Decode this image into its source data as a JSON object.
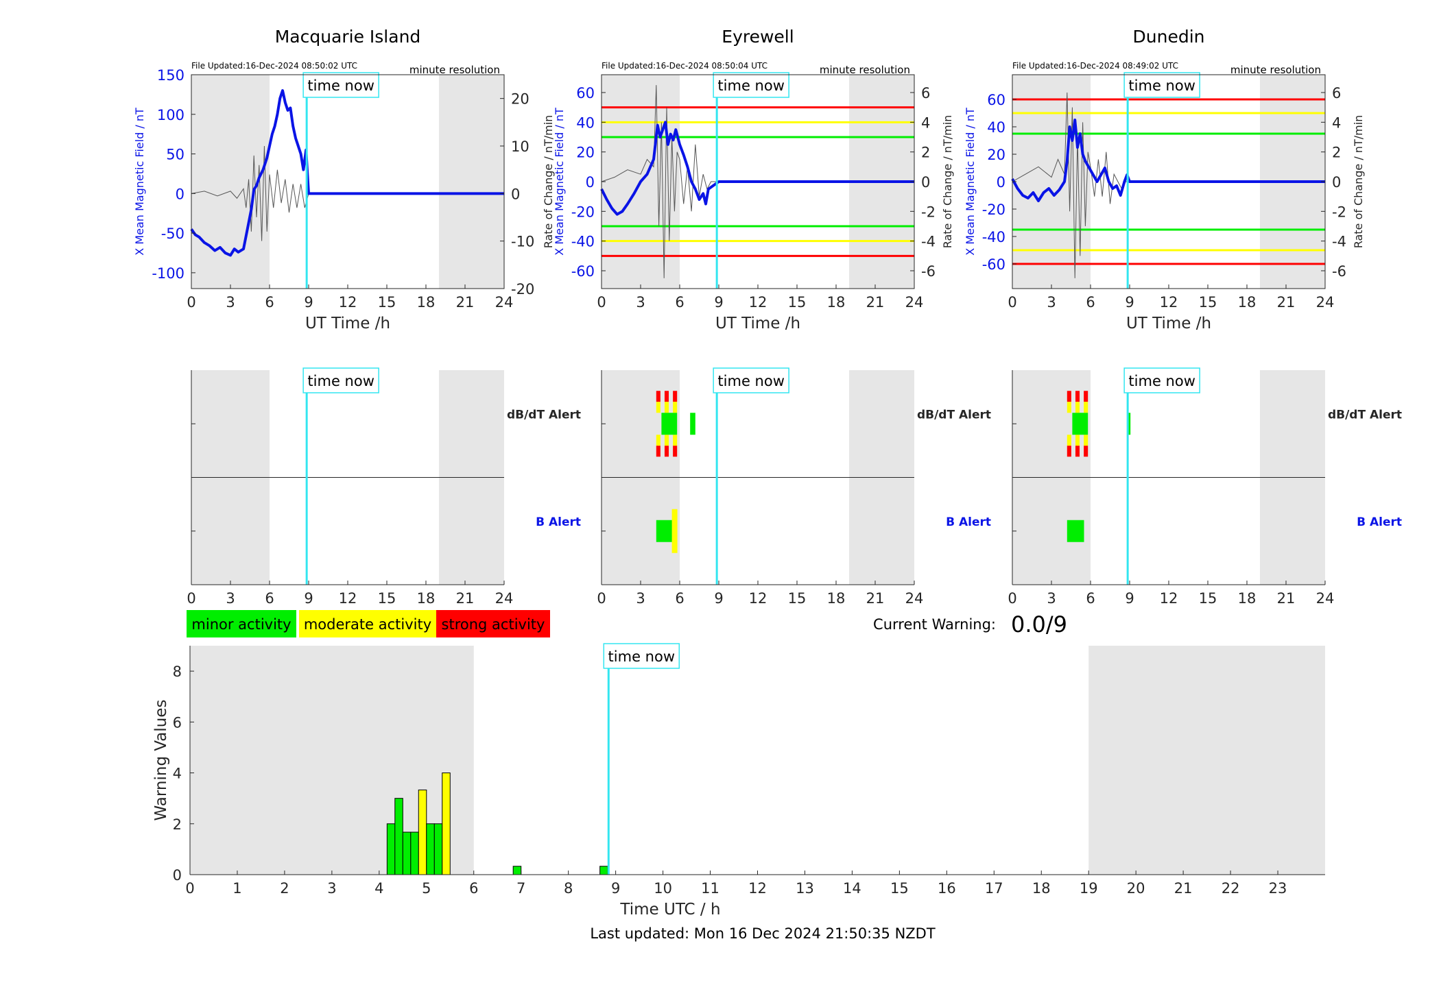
{
  "footer": {
    "last_updated": "Last updated: Mon 16 Dec 2024 21:50:35 NZDT"
  },
  "common": {
    "time_now_label": "time now",
    "time_now_hour": 8.85,
    "night_shading": [
      [
        0,
        6
      ],
      [
        19,
        24
      ]
    ],
    "xlabel": "UT Time /h",
    "file_resolution": "minute resolution",
    "alert_row_db": "dB/dT Alert",
    "alert_row_b": "B Alert"
  },
  "legend": {
    "minor": "minor activity",
    "moderate": "moderate activity",
    "strong": "strong activity"
  },
  "current_warning": {
    "label": "Current Warning:",
    "value": "0.0/9"
  },
  "colors": {
    "field": "#0a14e6",
    "rate": "#555555",
    "time_now": "#33e6f0",
    "night": "#e6e6e6",
    "minor": "#00ee00",
    "moderate": "#ffff00",
    "strong": "#ff0000"
  },
  "chart_data": [
    {
      "type": "line",
      "title": "Macquarie Island",
      "file_updated": "File Updated:16-Dec-2024 08:50:02 UTC",
      "ylabel": "X Mean Magnetic Field / nT",
      "y2label": "Rate of Change / nT/min",
      "xlim": [
        0,
        24
      ],
      "ylim": [
        -120,
        150
      ],
      "y2lim": [
        -20,
        25
      ],
      "yticks": [
        -100,
        -50,
        0,
        50,
        100,
        150
      ],
      "y2ticks": [
        -20,
        -10,
        0,
        10,
        20
      ],
      "thresholds": [],
      "series": [
        {
          "values_role": "field",
          "x": [
            0,
            0.3,
            0.6,
            1.0,
            1.4,
            1.8,
            2.2,
            2.6,
            3.0,
            3.3,
            3.6,
            4.0,
            4.3,
            4.6,
            4.8,
            5.0,
            5.2,
            5.5,
            5.8,
            6.0,
            6.2,
            6.4,
            6.6,
            6.8,
            7.0,
            7.2,
            7.4,
            7.6,
            7.8,
            8.0,
            8.2,
            8.4,
            8.6,
            8.8,
            9.0,
            24
          ],
          "y": [
            -45,
            -52,
            -55,
            -62,
            -66,
            -72,
            -68,
            -75,
            -78,
            -70,
            -74,
            -70,
            -45,
            -20,
            5,
            10,
            20,
            30,
            45,
            60,
            75,
            85,
            100,
            120,
            130,
            115,
            105,
            108,
            85,
            70,
            60,
            50,
            30,
            55,
            0,
            0
          ]
        },
        {
          "values_role": "rate",
          "x": [
            0,
            1,
            2,
            3,
            3.5,
            4,
            4.2,
            4.4,
            4.6,
            4.8,
            5.0,
            5.2,
            5.4,
            5.6,
            5.8,
            6.0,
            6.3,
            6.6,
            6.9,
            7.2,
            7.5,
            7.8,
            8.1,
            8.4,
            8.7,
            9.0
          ],
          "y": [
            0,
            0.5,
            -0.5,
            0.5,
            -1,
            1,
            -3,
            3,
            -8,
            8,
            -5,
            6,
            -10,
            10,
            -8,
            4,
            -3,
            5,
            -2,
            3,
            -4,
            2,
            -3,
            2,
            -3,
            0
          ]
        }
      ],
      "alerts": {
        "db": [],
        "b": []
      }
    },
    {
      "type": "line",
      "title": "Eyrewell",
      "file_updated": "File Updated:16-Dec-2024 08:50:04 UTC",
      "ylabel": "X Mean Magnetic Field / nT",
      "y2label": "Rate of Change / nT/min",
      "xlim": [
        0,
        24
      ],
      "ylim": [
        -72,
        72
      ],
      "y2lim": [
        -7.2,
        7.2
      ],
      "yticks": [
        -60,
        -40,
        -20,
        0,
        20,
        40,
        60
      ],
      "y2ticks": [
        -6,
        -4,
        -2,
        0,
        2,
        4,
        6
      ],
      "thresholds": [
        {
          "level": 50,
          "class": "strong"
        },
        {
          "level": 40,
          "class": "moderate"
        },
        {
          "level": 30,
          "class": "minor"
        },
        {
          "level": -30,
          "class": "minor"
        },
        {
          "level": -40,
          "class": "moderate"
        },
        {
          "level": -50,
          "class": "strong"
        }
      ],
      "series": [
        {
          "values_role": "field",
          "x": [
            0,
            0.4,
            0.8,
            1.2,
            1.6,
            2.0,
            2.5,
            3.0,
            3.5,
            4.0,
            4.3,
            4.5,
            4.7,
            4.9,
            5.1,
            5.3,
            5.5,
            5.7,
            6.0,
            6.3,
            6.6,
            6.9,
            7.2,
            7.5,
            7.8,
            8.0,
            8.2,
            9.0,
            24
          ],
          "y": [
            -5,
            -12,
            -18,
            -22,
            -20,
            -15,
            -8,
            0,
            5,
            15,
            38,
            30,
            35,
            40,
            25,
            32,
            28,
            35,
            25,
            18,
            10,
            0,
            -5,
            -12,
            -8,
            -15,
            -5,
            0,
            0
          ]
        },
        {
          "values_role": "rate",
          "x": [
            0,
            1,
            2,
            3,
            3.5,
            4.0,
            4.2,
            4.4,
            4.6,
            4.8,
            5.0,
            5.2,
            5.4,
            5.6,
            5.8,
            6.0,
            6.3,
            6.6,
            6.9,
            7.2,
            7.5,
            7.8,
            8.1,
            8.4,
            8.7,
            9.0
          ],
          "y": [
            0,
            0.3,
            0.8,
            0.5,
            1.5,
            1.0,
            6.5,
            -3,
            4,
            -6.5,
            5,
            -4,
            3,
            -2,
            2,
            1.5,
            -1.5,
            1,
            -2,
            2.5,
            -1,
            0.5,
            -0.5,
            0,
            0,
            0
          ]
        }
      ],
      "alerts": {
        "db": [
          "4.2-4.6",
          "4.6-5.8",
          "6.8-7.2"
        ],
        "b": [
          "4.2-5.8"
        ]
      }
    },
    {
      "type": "line",
      "title": "Dunedin",
      "file_updated": "File Updated:16-Dec-2024 08:49:02 UTC",
      "ylabel": "X Mean Magnetic Field / nT",
      "y2label": "Rate of Change / nT/min",
      "xlim": [
        0,
        24
      ],
      "ylim": [
        -78,
        78
      ],
      "y2lim": [
        -7.2,
        7.2
      ],
      "yticks": [
        -60,
        -40,
        -20,
        0,
        20,
        40,
        60
      ],
      "y2ticks": [
        -6,
        -4,
        -2,
        0,
        2,
        4,
        6
      ],
      "thresholds": [
        {
          "level": 60,
          "class": "strong"
        },
        {
          "level": 50,
          "class": "moderate"
        },
        {
          "level": 35,
          "class": "minor"
        },
        {
          "level": -35,
          "class": "minor"
        },
        {
          "level": -50,
          "class": "moderate"
        },
        {
          "level": -60,
          "class": "strong"
        }
      ],
      "series": [
        {
          "values_role": "field",
          "x": [
            0,
            0.4,
            0.8,
            1.2,
            1.6,
            2.0,
            2.4,
            2.8,
            3.2,
            3.6,
            4.0,
            4.2,
            4.4,
            4.6,
            4.8,
            5.0,
            5.2,
            5.4,
            5.6,
            5.9,
            6.2,
            6.5,
            6.8,
            7.1,
            7.4,
            7.7,
            8.0,
            8.3,
            8.6,
            8.8,
            9.0,
            24
          ],
          "y": [
            2,
            -5,
            -10,
            -12,
            -8,
            -14,
            -8,
            -5,
            -10,
            -6,
            0,
            15,
            40,
            30,
            45,
            25,
            35,
            20,
            15,
            10,
            5,
            0,
            5,
            10,
            0,
            -5,
            -3,
            -10,
            0,
            5,
            0,
            0
          ]
        },
        {
          "values_role": "rate",
          "x": [
            0,
            1,
            2,
            3,
            3.5,
            4.0,
            4.2,
            4.4,
            4.6,
            4.8,
            5.0,
            5.2,
            5.4,
            5.6,
            5.8,
            6.0,
            6.3,
            6.6,
            6.9,
            7.2,
            7.5,
            7.8,
            8.1,
            8.4,
            8.7,
            9.0
          ],
          "y": [
            0,
            0.5,
            1.0,
            0.3,
            1.5,
            0.5,
            6,
            -2,
            5,
            -6.5,
            3,
            -5,
            4,
            -3,
            2,
            1,
            -1,
            1.5,
            -1,
            2,
            -1.5,
            0.5,
            0,
            -0.5,
            0,
            0
          ]
        }
      ],
      "alerts": {
        "db": [
          "4.2-4.6",
          "4.6-5.8",
          "8.8-9.0"
        ],
        "b": [
          "4.2-5.5"
        ]
      }
    },
    {
      "type": "bar",
      "ylabel": "Warning Values",
      "xlabel": "Time UTC / h",
      "xlim": [
        0,
        24
      ],
      "ylim": [
        0,
        9
      ],
      "yticks": [
        0,
        2,
        4,
        6,
        8
      ],
      "xticks": [
        0,
        1,
        2,
        3,
        4,
        5,
        6,
        7,
        8,
        9,
        10,
        11,
        12,
        13,
        14,
        15,
        16,
        17,
        18,
        19,
        20,
        21,
        22,
        23
      ],
      "bar_width_h": 0.167,
      "bars": [
        {
          "x": 4.167,
          "y": 2,
          "class": "minor"
        },
        {
          "x": 4.333,
          "y": 3,
          "class": "minor"
        },
        {
          "x": 4.5,
          "y": 1.67,
          "class": "minor"
        },
        {
          "x": 4.667,
          "y": 1.67,
          "class": "minor"
        },
        {
          "x": 4.833,
          "y": 3.33,
          "class": "moderate"
        },
        {
          "x": 5.0,
          "y": 2,
          "class": "minor"
        },
        {
          "x": 5.167,
          "y": 2,
          "class": "minor"
        },
        {
          "x": 5.333,
          "y": 4,
          "class": "moderate"
        },
        {
          "x": 6.833,
          "y": 0.33,
          "class": "minor"
        },
        {
          "x": 8.667,
          "y": 0.33,
          "class": "minor"
        }
      ]
    }
  ]
}
